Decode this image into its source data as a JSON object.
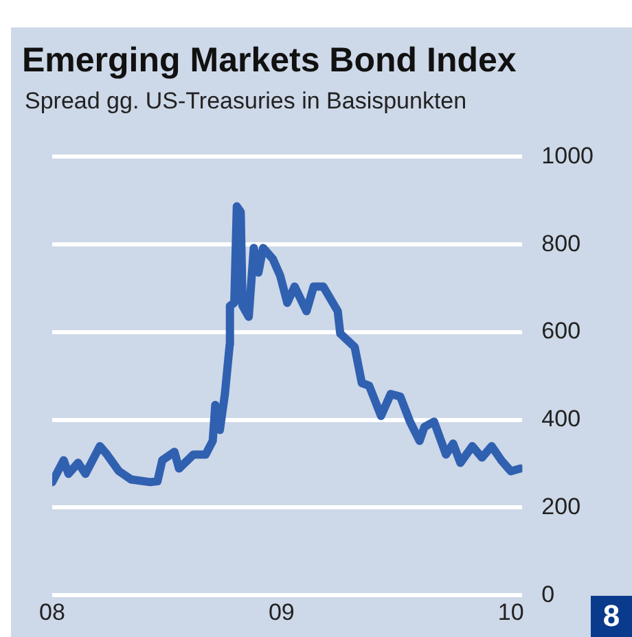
{
  "chart_data": {
    "type": "line",
    "title": "Emerging Markets Bond Index",
    "subtitle": "Spread gg. US-Treasuries in Basispunkten",
    "x": [
      2008.0,
      2008.05,
      2008.071,
      2008.113,
      2008.145,
      2008.208,
      2008.239,
      2008.291,
      2008.344,
      2008.428,
      2008.459,
      2008.48,
      2008.533,
      2008.553,
      2008.616,
      2008.669,
      2008.7,
      2008.711,
      2008.731,
      2008.753,
      2008.774,
      2008.775,
      2008.794,
      2008.805,
      2008.822,
      2008.83,
      2008.857,
      2008.879,
      2008.899,
      2008.92,
      2008.962,
      2008.994,
      2009.025,
      2009.057,
      2009.109,
      2009.14,
      2009.182,
      2009.245,
      2009.256,
      2009.319,
      2009.35,
      2009.382,
      2009.434,
      2009.476,
      2009.518,
      2009.56,
      2009.602,
      2009.623,
      2009.665,
      2009.717,
      2009.748,
      2009.78,
      2009.832,
      2009.874,
      2009.916,
      2009.958,
      2010.0,
      2010.042
    ],
    "series": [
      {
        "color": "#3060b0",
        "values": [
          258,
          308,
          277,
          302,
          277,
          340,
          321,
          283,
          264,
          258,
          260,
          308,
          327,
          289,
          321,
          321,
          352,
          434,
          377,
          459,
          572,
          660,
          667,
          887,
          874,
          660,
          635,
          792,
          736,
          792,
          767,
          729,
          667,
          704,
          648,
          704,
          704,
          648,
          597,
          566,
          484,
          478,
          409,
          459,
          453,
          396,
          352,
          384,
          396,
          321,
          346,
          302,
          340,
          314,
          340,
          308,
          283,
          289
        ]
      }
    ],
    "xlim": [
      2008,
      2010.05
    ],
    "xticks": [
      {
        "value": 2008,
        "label": "08"
      },
      {
        "value": 2009,
        "label": "09"
      },
      {
        "value": 2010,
        "label": "10"
      }
    ],
    "ylim": [
      0,
      1000
    ],
    "yticks": [
      0,
      200,
      400,
      600,
      800,
      1000
    ],
    "grid": "y",
    "legend": false,
    "marker": "none",
    "line_style": "solid",
    "annotations": [
      "8"
    ]
  }
}
